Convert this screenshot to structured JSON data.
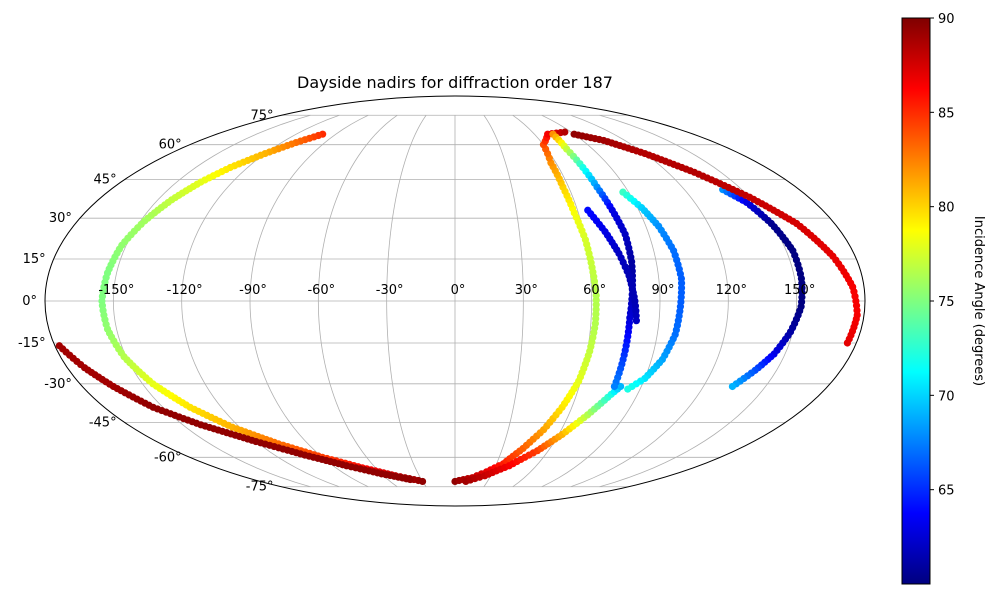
{
  "chart_data": {
    "type": "scatter",
    "projection": "mollweide",
    "title": "Dayside nadirs for diffraction order 187",
    "grid": true,
    "longitude_ticks": [
      -150,
      -120,
      -90,
      -60,
      -30,
      0,
      30,
      60,
      90,
      120,
      150
    ],
    "longitude_tick_labels": [
      "-150°",
      "-120°",
      "-90°",
      "-60°",
      "-30°",
      "0°",
      "30°",
      "60°",
      "90°",
      "120°",
      "150°"
    ],
    "latitude_ticks": [
      75,
      60,
      45,
      30,
      15,
      0,
      -15,
      -30,
      -45,
      -60,
      -75
    ],
    "latitude_tick_labels": [
      "75°",
      "60°",
      "45°",
      "30°",
      "15°",
      "0°",
      "-15°",
      "-30°",
      "-45°",
      "-60°",
      "-75°"
    ],
    "colorbar": {
      "label": "Incidence Angle (degrees)",
      "colormap": "jet",
      "range": [
        60,
        90
      ],
      "ticks": [
        65,
        70,
        75,
        80,
        85,
        90
      ],
      "tick_labels": [
        "65",
        "70",
        "75",
        "80",
        "85",
        "90"
      ]
    },
    "series": [
      {
        "points": [
          [
            -100,
            65,
            85
          ],
          [
            -110,
            61,
            83
          ],
          [
            -120,
            56,
            81
          ],
          [
            -130,
            50,
            79.5
          ],
          [
            -137,
            44,
            78
          ],
          [
            -143,
            37,
            77
          ],
          [
            -148,
            29,
            76
          ],
          [
            -152,
            20,
            75.5
          ],
          [
            -154,
            10,
            75
          ],
          [
            -155,
            0,
            75
          ],
          [
            -154,
            -10,
            75.5
          ],
          [
            -151,
            -20,
            76.5
          ],
          [
            -145,
            -30,
            78
          ],
          [
            -136,
            -39,
            79.5
          ],
          [
            -124,
            -47,
            81
          ],
          [
            -108,
            -54,
            83
          ],
          [
            -90,
            -60,
            84.5
          ],
          [
            -70,
            -65,
            86
          ],
          [
            -50,
            -69,
            88
          ],
          [
            -30,
            -72,
            89.5
          ]
        ]
      },
      {
        "points": [
          [
            -178,
            -16,
            89
          ],
          [
            -172,
            -24,
            89
          ],
          [
            -165,
            -31,
            89
          ],
          [
            -155,
            -39,
            89.5
          ],
          [
            -140,
            -46,
            89.5
          ],
          [
            -120,
            -53,
            89.5
          ],
          [
            -100,
            -59,
            89.5
          ],
          [
            -80,
            -64,
            89.5
          ],
          [
            -60,
            -68,
            89.5
          ],
          [
            -40,
            -71,
            89.5
          ]
        ]
      },
      {
        "points": [
          [
            0,
            -72,
            89.5
          ],
          [
            15,
            -70,
            88
          ],
          [
            25,
            -67,
            87
          ],
          [
            35,
            -63,
            85.5
          ],
          [
            43,
            -56,
            83.5
          ],
          [
            50,
            -48,
            81.5
          ],
          [
            55,
            -39,
            79.5
          ],
          [
            59,
            -29,
            78
          ],
          [
            61,
            -18,
            77
          ],
          [
            62,
            -8,
            76.5
          ],
          [
            62,
            2,
            76.5
          ],
          [
            61,
            12,
            77
          ],
          [
            60,
            22,
            77.5
          ],
          [
            58,
            32,
            78.5
          ],
          [
            57,
            42,
            80
          ],
          [
            57,
            52,
            82
          ],
          [
            60,
            60,
            84
          ],
          [
            70,
            65,
            86.5
          ],
          [
            85,
            66,
            88.5
          ]
        ]
      },
      {
        "points": [
          [
            10,
            -72,
            89
          ],
          [
            25,
            -69,
            88
          ],
          [
            40,
            -64,
            86.5
          ],
          [
            53,
            -57,
            84.5
          ],
          [
            62,
            -50,
            81
          ],
          [
            70,
            -42,
            76.5
          ],
          [
            77,
            -34,
            72
          ],
          [
            80,
            -31,
            69
          ]
        ]
      },
      {
        "points": [
          [
            74,
            65,
            82
          ],
          [
            73,
            58,
            77
          ],
          [
            74,
            50,
            72
          ],
          [
            75,
            42,
            68
          ],
          [
            77,
            33,
            63
          ],
          [
            79,
            24,
            62
          ],
          [
            79,
            14,
            61
          ],
          [
            78,
            4,
            61.5
          ],
          [
            77,
            -6,
            62.5
          ],
          [
            77,
            -16,
            64.5
          ],
          [
            77,
            -26,
            66.5
          ],
          [
            77,
            -31,
            67.5
          ]
        ]
      },
      {
        "points": [
          [
            65,
            33,
            64
          ],
          [
            70,
            25,
            63
          ],
          [
            74,
            17,
            62
          ],
          [
            77,
            9,
            61.5
          ],
          [
            79,
            0,
            61.5
          ],
          [
            80,
            -7,
            62
          ]
        ]
      },
      {
        "points": [
          [
            87,
            40,
            73
          ],
          [
            92,
            34,
            70
          ],
          [
            96,
            27,
            68
          ],
          [
            99,
            18,
            67
          ],
          [
            100,
            8,
            66.5
          ],
          [
            99,
            -2,
            66.5
          ],
          [
            98,
            -12,
            67
          ],
          [
            95,
            -21,
            68.5
          ],
          [
            90,
            -28,
            70.5
          ],
          [
            84,
            -32,
            72
          ]
        ]
      },
      {
        "points": [
          [
            140,
            41,
            68
          ],
          [
            146,
            36,
            63
          ],
          [
            150,
            28,
            60.5
          ],
          [
            153,
            18,
            60
          ],
          [
            153,
            8,
            60
          ],
          [
            152,
            -2,
            60
          ],
          [
            149,
            -11,
            61
          ],
          [
            145,
            -19,
            63
          ],
          [
            140,
            -25,
            66
          ],
          [
            134,
            -31,
            69
          ]
        ]
      },
      {
        "points": [
          [
            90,
            65,
            89.5
          ],
          [
            105,
            62,
            89
          ],
          [
            120,
            56,
            88.5
          ],
          [
            135,
            48,
            88.5
          ],
          [
            150,
            38,
            88
          ],
          [
            162,
            28,
            87.5
          ],
          [
            170,
            16,
            87
          ],
          [
            175,
            5,
            86.5
          ],
          [
            177,
            -5,
            86.5
          ],
          [
            176,
            -15,
            87
          ]
        ]
      }
    ]
  }
}
